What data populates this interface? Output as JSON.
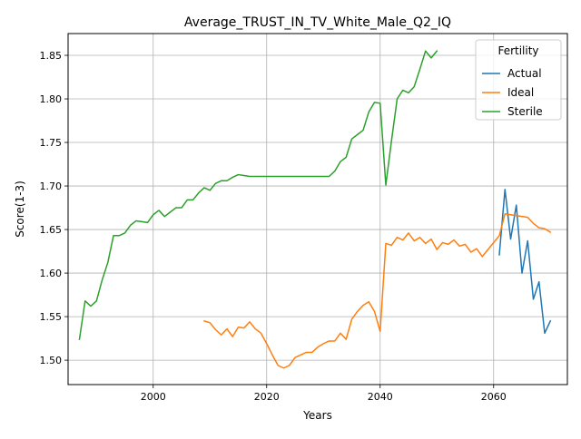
{
  "chart_data": {
    "type": "line",
    "title": "Average_TRUST_IN_TV_White_Male_Q2_IQ",
    "xlabel": "Years",
    "ylabel": "Score(1-3)",
    "xlim": [
      1985,
      2073
    ],
    "ylim": [
      1.472,
      1.875
    ],
    "x_ticks": [
      2000,
      2020,
      2040,
      2060
    ],
    "y_ticks": [
      1.5,
      1.55,
      1.6,
      1.65,
      1.7,
      1.75,
      1.8,
      1.85
    ],
    "grid": true,
    "legend": {
      "title": "Fertility",
      "placement": "top-right"
    },
    "series": [
      {
        "name": "Actual",
        "color": "#1f77b4",
        "x": [
          2061,
          2062,
          2063,
          2064,
          2065,
          2066,
          2067,
          2068,
          2069,
          2070
        ],
        "y": [
          1.621,
          1.696,
          1.639,
          1.678,
          1.6,
          1.637,
          1.57,
          1.59,
          1.531,
          1.545
        ]
      },
      {
        "name": "Ideal",
        "color": "#ff7f0e",
        "x": [
          2009,
          2010,
          2011,
          2012,
          2013,
          2014,
          2015,
          2016,
          2017,
          2018,
          2019,
          2020,
          2021,
          2022,
          2023,
          2024,
          2025,
          2026,
          2027,
          2028,
          2029,
          2030,
          2031,
          2032,
          2033,
          2034,
          2035,
          2036,
          2037,
          2038,
          2039,
          2040,
          2041,
          2042,
          2043,
          2044,
          2045,
          2046,
          2047,
          2048,
          2049,
          2050,
          2051,
          2052,
          2053,
          2054,
          2055,
          2056,
          2057,
          2058,
          2059,
          2060,
          2061,
          2062,
          2063,
          2064,
          2065,
          2066,
          2067,
          2068,
          2069,
          2070
        ],
        "y": [
          1.545,
          1.543,
          1.535,
          1.529,
          1.536,
          1.527,
          1.538,
          1.537,
          1.544,
          1.536,
          1.531,
          1.519,
          1.506,
          1.494,
          1.491,
          1.494,
          1.503,
          1.506,
          1.509,
          1.509,
          1.515,
          1.519,
          1.522,
          1.522,
          1.531,
          1.524,
          1.547,
          1.556,
          1.563,
          1.567,
          1.556,
          1.533,
          1.634,
          1.632,
          1.641,
          1.638,
          1.646,
          1.637,
          1.641,
          1.634,
          1.639,
          1.627,
          1.635,
          1.633,
          1.638,
          1.631,
          1.633,
          1.624,
          1.628,
          1.619,
          1.627,
          1.635,
          1.643,
          1.668,
          1.667,
          1.666,
          1.665,
          1.664,
          1.657,
          1.652,
          1.651,
          1.647
        ]
      },
      {
        "name": "Sterile",
        "color": "#2ca02c",
        "x": [
          1987,
          1988,
          1989,
          1990,
          1991,
          1992,
          1993,
          1994,
          1995,
          1996,
          1997,
          1998,
          1999,
          2000,
          2001,
          2002,
          2003,
          2004,
          2005,
          2006,
          2007,
          2008,
          2009,
          2010,
          2011,
          2012,
          2013,
          2014,
          2015,
          2016,
          2017,
          2018,
          2019,
          2020,
          2021,
          2022,
          2023,
          2024,
          2025,
          2026,
          2027,
          2028,
          2029,
          2030,
          2031,
          2032,
          2033,
          2034,
          2035,
          2036,
          2037,
          2038,
          2039,
          2040,
          2041,
          2042,
          2043,
          2044,
          2045,
          2046,
          2047,
          2048,
          2049,
          2050
        ],
        "y": [
          1.524,
          1.568,
          1.562,
          1.568,
          1.592,
          1.612,
          1.643,
          1.643,
          1.646,
          1.655,
          1.66,
          1.659,
          1.658,
          1.667,
          1.672,
          1.665,
          1.67,
          1.675,
          1.675,
          1.684,
          1.684,
          1.692,
          1.698,
          1.695,
          1.703,
          1.706,
          1.706,
          1.71,
          1.713,
          1.712,
          1.711,
          1.711,
          1.711,
          1.711,
          1.711,
          1.711,
          1.711,
          1.711,
          1.711,
          1.711,
          1.711,
          1.711,
          1.711,
          1.711,
          1.711,
          1.717,
          1.728,
          1.733,
          1.754,
          1.759,
          1.764,
          1.785,
          1.796,
          1.795,
          1.701,
          1.752,
          1.8,
          1.81,
          1.807,
          1.814,
          1.834,
          1.855,
          1.847,
          1.855
        ]
      }
    ]
  }
}
